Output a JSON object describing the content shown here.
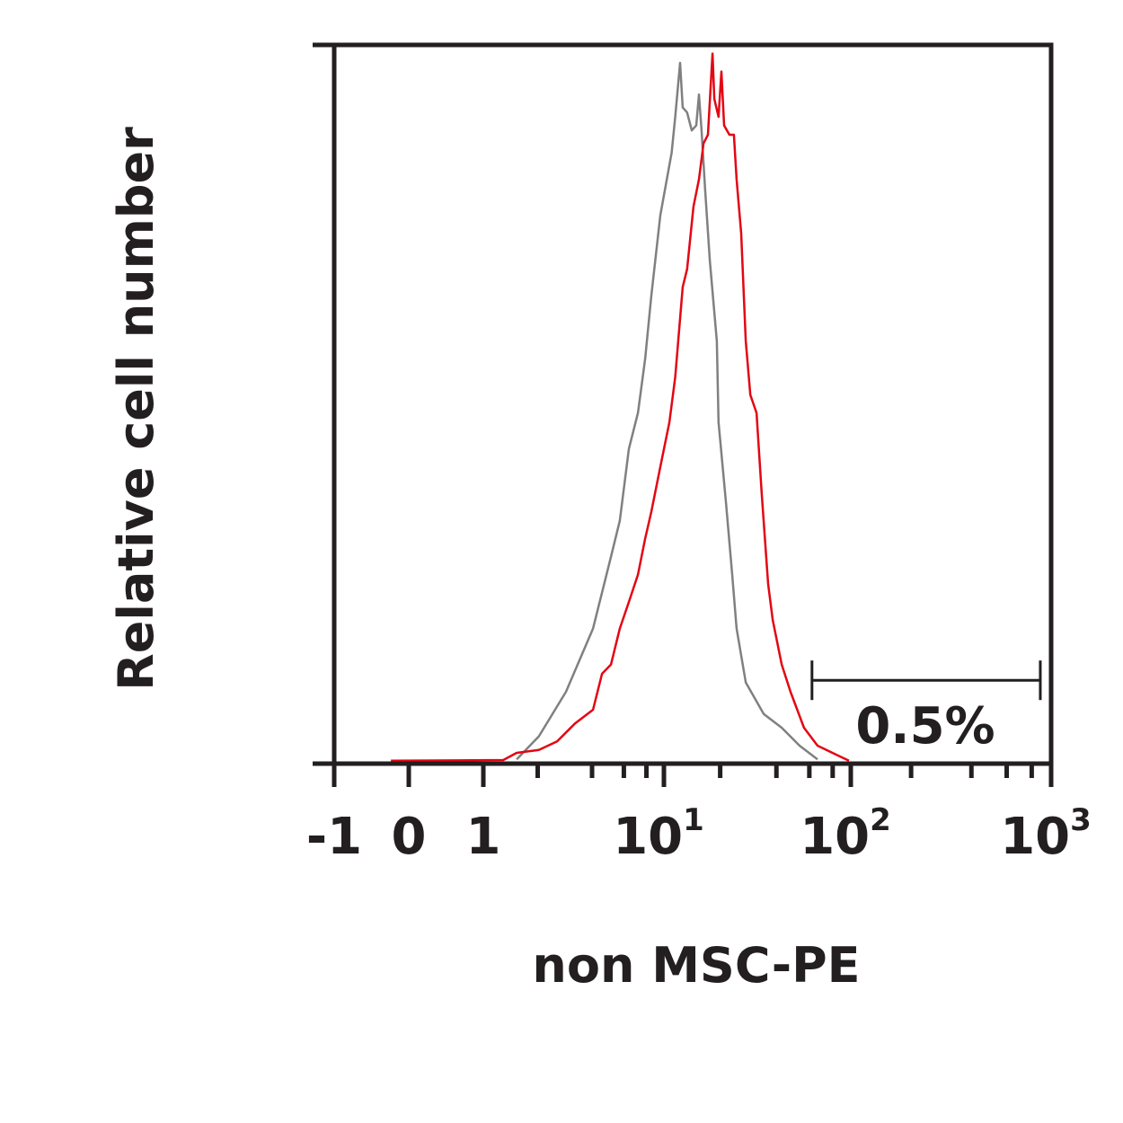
{
  "chart_data": {
    "type": "line",
    "subtype": "flow-cytometry-histogram",
    "xlabel": "non MSC-PE",
    "ylabel": "Relative cell number",
    "x_scale": "logicle (linear -1..1, log 1..1000)",
    "xlim": [
      -1,
      1000
    ],
    "ylim": [
      0,
      100
    ],
    "grid": false,
    "x_ticks_major": [
      {
        "value": -1,
        "label": "-1",
        "exp": ""
      },
      {
        "value": 0,
        "label": "0",
        "exp": ""
      },
      {
        "value": 1,
        "label": "1",
        "exp": ""
      },
      {
        "value": 10,
        "label": "10",
        "exp": "1"
      },
      {
        "value": 100,
        "label": "10",
        "exp": "2"
      },
      {
        "value": 1000,
        "label": "10",
        "exp": "3"
      }
    ],
    "x_ticks_minor": [
      2,
      4,
      6,
      8,
      20,
      40,
      60,
      80,
      200,
      400,
      600,
      800
    ],
    "series": [
      {
        "color": "#808080",
        "points": [
          [
            1.53,
            0.6
          ],
          [
            2.03,
            3.8
          ],
          [
            2.87,
            10
          ],
          [
            4.05,
            18.8
          ],
          [
            5.09,
            28.8
          ],
          [
            5.7,
            33.8
          ],
          [
            6.4,
            43.8
          ],
          [
            7.18,
            48.8
          ],
          [
            7.87,
            56.3
          ],
          [
            8.51,
            65
          ],
          [
            9.55,
            76.3
          ],
          [
            11.0,
            85
          ],
          [
            11.5,
            90
          ],
          [
            12.2,
            97.5
          ],
          [
            12.6,
            91.3
          ],
          [
            13.3,
            90.6
          ],
          [
            14.1,
            88.1
          ],
          [
            14.9,
            88.8
          ],
          [
            15.4,
            93.1
          ],
          [
            15.9,
            88.1
          ],
          [
            16.6,
            80
          ],
          [
            17.6,
            70
          ],
          [
            19.2,
            58.8
          ],
          [
            19.6,
            47.5
          ],
          [
            21.5,
            36.3
          ],
          [
            23.2,
            26.3
          ],
          [
            24.5,
            18.8
          ],
          [
            27.4,
            11.3
          ],
          [
            34.2,
            6.9
          ],
          [
            42.7,
            5
          ],
          [
            53.2,
            2.5
          ],
          [
            66.4,
            0.6
          ]
        ]
      },
      {
        "color": "#e30613",
        "points": [
          [
            -0.24,
            0.4
          ],
          [
            1.29,
            0.5
          ],
          [
            1.53,
            1.5
          ],
          [
            2.03,
            1.9
          ],
          [
            2.56,
            3.1
          ],
          [
            3.22,
            5.6
          ],
          [
            4.05,
            7.5
          ],
          [
            4.54,
            12.5
          ],
          [
            5.09,
            13.8
          ],
          [
            5.7,
            18.8
          ],
          [
            6.4,
            22.5
          ],
          [
            7.18,
            26.3
          ],
          [
            7.87,
            31.3
          ],
          [
            8.51,
            35
          ],
          [
            9.55,
            41.3
          ],
          [
            10.7,
            47.5
          ],
          [
            11.5,
            53.8
          ],
          [
            12.6,
            66.3
          ],
          [
            13.3,
            68.8
          ],
          [
            14.4,
            77.5
          ],
          [
            15.4,
            81.3
          ],
          [
            16.3,
            86.3
          ],
          [
            17.2,
            87.5
          ],
          [
            18.2,
            98.8
          ],
          [
            18.6,
            92.5
          ],
          [
            19.6,
            90
          ],
          [
            20.3,
            96.3
          ],
          [
            21.0,
            88.8
          ],
          [
            22.4,
            87.5
          ],
          [
            23.7,
            87.5
          ],
          [
            24.5,
            81.3
          ],
          [
            25.9,
            73.8
          ],
          [
            27.4,
            58.8
          ],
          [
            29.0,
            51.3
          ],
          [
            31.3,
            48.8
          ],
          [
            33.4,
            37.5
          ],
          [
            36.1,
            25
          ],
          [
            38.2,
            20
          ],
          [
            42.7,
            13.8
          ],
          [
            47.6,
            10
          ],
          [
            56.2,
            5
          ],
          [
            66.4,
            2.5
          ],
          [
            82.8,
            1.3
          ],
          [
            97.8,
            0.4
          ]
        ]
      }
    ],
    "gate": {
      "x_start": 62,
      "x_end": 883,
      "y": 11.6,
      "label": "0.5%"
    }
  }
}
